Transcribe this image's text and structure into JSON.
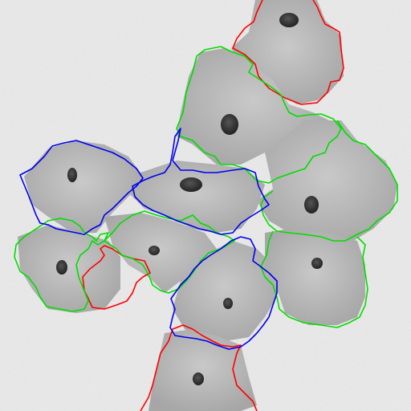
{
  "image": {
    "background_color": "#ebebeb",
    "cell_fill_color": "#a8a8a8",
    "nucleus_color": "#333333",
    "outline_colors": {
      "red": "#ff0000",
      "green": "#00dd00",
      "blue": "#0000ee"
    }
  },
  "cells": [
    {
      "name": "cell-top-right",
      "outline": "red"
    },
    {
      "name": "cell-upper-center",
      "outline": "green"
    },
    {
      "name": "cell-left",
      "outline": "blue"
    },
    {
      "name": "cell-center",
      "outline": "blue"
    },
    {
      "name": "cell-right",
      "outline": "green"
    },
    {
      "name": "cell-lower-left",
      "outline": "green"
    },
    {
      "name": "cell-lower-left-inner",
      "outline": "red"
    },
    {
      "name": "cell-middle-lower",
      "outline": "green"
    },
    {
      "name": "cell-lower-center",
      "outline": "blue"
    },
    {
      "name": "cell-lower-right",
      "outline": "green"
    },
    {
      "name": "cell-bottom",
      "outline": "red"
    }
  ]
}
